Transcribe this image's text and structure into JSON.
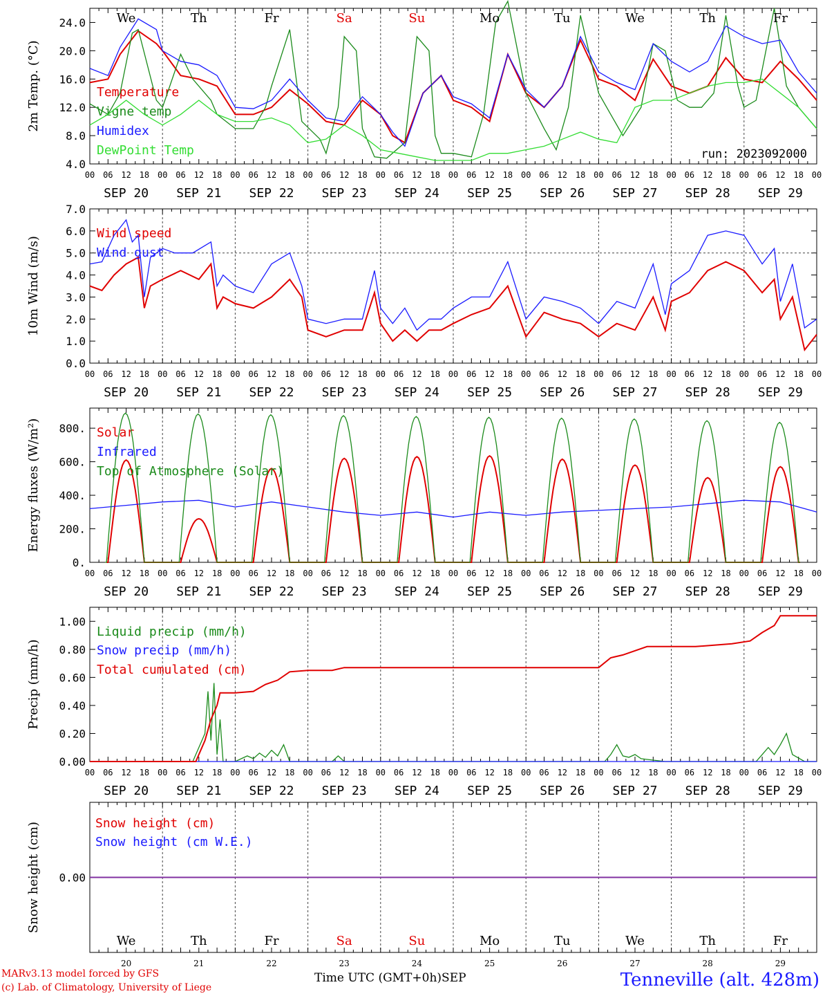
{
  "run_label": "run: 2023092000",
  "days": [
    "We",
    "Th",
    "Fr",
    "Sa",
    "Su",
    "Mo",
    "Tu",
    "We",
    "Th",
    "Fr"
  ],
  "weekend_days": [
    3,
    4
  ],
  "day_numbers": [
    "20",
    "21",
    "22",
    "23",
    "24",
    "25",
    "26",
    "27",
    "28",
    "29"
  ],
  "date_labels": [
    "SEP 20",
    "SEP 21",
    "SEP 22",
    "SEP 23",
    "SEP 24",
    "SEP 25",
    "SEP 26",
    "SEP 27",
    "SEP 28",
    "SEP 29"
  ],
  "hour_ticks": [
    "00",
    "06",
    "12",
    "18"
  ],
  "hour_end": "00",
  "colors": {
    "red": "#e00000",
    "green": "#1a8a1a",
    "blue": "#1a1aff",
    "lime": "#33dd33",
    "purple": "#8030a0"
  },
  "chart_data": [
    {
      "type": "line",
      "id": "temperature",
      "ylabel": "2m Temp. (°C)",
      "ylim": [
        4,
        26
      ],
      "yticks": [
        "4.0",
        "8.0",
        "12.0",
        "16.0",
        "20.0",
        "24.0"
      ],
      "ytick_values": [
        4,
        8,
        12,
        16,
        20,
        24
      ],
      "x_unit": "hours since SEP 20 00 UTC",
      "xlim": [
        0,
        240
      ],
      "series": [
        {
          "name": "Temperature",
          "color": "red",
          "x": [
            0,
            6,
            10,
            16,
            22,
            24,
            30,
            36,
            42,
            48,
            54,
            60,
            66,
            72,
            78,
            84,
            90,
            96,
            100,
            104,
            110,
            116,
            120,
            126,
            132,
            138,
            144,
            150,
            156,
            162,
            168,
            174,
            180,
            186,
            192,
            198,
            204,
            210,
            216,
            222,
            228,
            234,
            240
          ],
          "y": [
            15.5,
            16,
            19.5,
            22.8,
            21,
            20,
            16.5,
            16,
            15,
            11,
            11,
            12,
            14.5,
            12.5,
            10,
            9.5,
            13,
            11,
            8,
            7,
            14,
            16.5,
            13,
            12,
            10,
            19.5,
            14,
            12,
            15,
            21.5,
            16,
            15,
            13,
            18.8,
            15,
            14,
            15,
            19,
            16,
            15.5,
            18.5,
            16,
            13
          ]
        },
        {
          "name": "Vigne temp",
          "color": "green",
          "x": [
            0,
            6,
            10,
            14,
            16,
            22,
            24,
            30,
            34,
            40,
            42,
            48,
            54,
            58,
            60,
            66,
            70,
            76,
            78,
            82,
            84,
            88,
            90,
            94,
            98,
            104,
            108,
            112,
            114,
            116,
            120,
            126,
            130,
            134,
            138,
            144,
            150,
            154,
            158,
            162,
            168,
            172,
            176,
            182,
            186,
            190,
            194,
            198,
            202,
            206,
            210,
            214,
            216,
            220,
            226,
            230,
            234,
            240
          ],
          "y": [
            12.5,
            11,
            14,
            22.5,
            23,
            13,
            12,
            19.5,
            16,
            13,
            11,
            9,
            9,
            12,
            15,
            23,
            10,
            7.5,
            5.5,
            12,
            22,
            20,
            9,
            5,
            4.8,
            7,
            22,
            20,
            8,
            5.5,
            5.5,
            5,
            11,
            24,
            27,
            14,
            9,
            6,
            12,
            25,
            14,
            11,
            8,
            12,
            21,
            20,
            13,
            12,
            12,
            14,
            25,
            15,
            12,
            13,
            26,
            15,
            12,
            9
          ]
        },
        {
          "name": "Humidex",
          "color": "blue",
          "x": [
            0,
            6,
            10,
            16,
            22,
            24,
            30,
            36,
            42,
            48,
            54,
            60,
            66,
            72,
            78,
            84,
            90,
            96,
            100,
            104,
            110,
            116,
            120,
            126,
            132,
            138,
            144,
            150,
            156,
            162,
            168,
            174,
            180,
            186,
            192,
            198,
            204,
            210,
            216,
            222,
            228,
            234,
            240
          ],
          "y": [
            17.5,
            16.5,
            20.5,
            24.5,
            23,
            20,
            18.5,
            18,
            16.5,
            12,
            11.8,
            13,
            16,
            13,
            10.5,
            10,
            13.5,
            11,
            8.5,
            6.5,
            14,
            16.5,
            13.5,
            12.5,
            10.5,
            19.5,
            14.5,
            12,
            15,
            22,
            17,
            15.5,
            14.5,
            21,
            18.5,
            17,
            18.5,
            23.5,
            22,
            21,
            21.5,
            17,
            14
          ]
        },
        {
          "name": "DewPoint Temp",
          "color": "lime",
          "x": [
            0,
            6,
            12,
            18,
            24,
            30,
            36,
            42,
            48,
            54,
            60,
            66,
            72,
            78,
            84,
            90,
            96,
            102,
            108,
            114,
            120,
            126,
            132,
            138,
            144,
            150,
            156,
            162,
            168,
            174,
            180,
            186,
            192,
            198,
            204,
            210,
            216,
            222,
            228,
            234,
            240
          ],
          "y": [
            9.5,
            11,
            13,
            11,
            9.5,
            11,
            13,
            11,
            10,
            10,
            10.5,
            9.5,
            7,
            7.5,
            9.5,
            8,
            6,
            5.5,
            5,
            4.5,
            4.5,
            4.5,
            5.5,
            5.5,
            6,
            6.5,
            7.5,
            8.5,
            7.5,
            7,
            12,
            13,
            13,
            14,
            15,
            15.5,
            15.5,
            16,
            14,
            12,
            9
          ]
        }
      ]
    },
    {
      "type": "line",
      "id": "wind",
      "ylabel": "10m Wind (m/s)",
      "ylim": [
        0,
        7
      ],
      "yticks": [
        "0.0",
        "1.0",
        "2.0",
        "3.0",
        "4.0",
        "5.0",
        "6.0",
        "7.0"
      ],
      "ytick_values": [
        0,
        1,
        2,
        3,
        4,
        5,
        6,
        7
      ],
      "xlim": [
        0,
        240
      ],
      "hline": 5,
      "series": [
        {
          "name": "Wind speed",
          "color": "red",
          "x": [
            0,
            4,
            8,
            12,
            16,
            18,
            20,
            24,
            30,
            36,
            40,
            42,
            44,
            48,
            54,
            60,
            66,
            70,
            72,
            78,
            84,
            90,
            94,
            96,
            100,
            104,
            108,
            112,
            116,
            120,
            126,
            132,
            138,
            144,
            150,
            156,
            162,
            168,
            174,
            180,
            186,
            190,
            192,
            198,
            204,
            210,
            216,
            222,
            226,
            228,
            232,
            236,
            240
          ],
          "y": [
            3.5,
            3.3,
            4,
            4.5,
            4.8,
            2.5,
            3.5,
            3.8,
            4.2,
            3.8,
            4.5,
            2.5,
            3,
            2.7,
            2.5,
            3,
            3.8,
            3,
            1.5,
            1.2,
            1.5,
            1.5,
            3.2,
            1.8,
            1,
            1.5,
            1,
            1.5,
            1.5,
            1.8,
            2.2,
            2.5,
            3.5,
            1.2,
            2.3,
            2,
            1.8,
            1.2,
            1.8,
            1.5,
            3,
            1.5,
            2.8,
            3.2,
            4.2,
            4.6,
            4.2,
            3.2,
            3.8,
            2,
            3,
            0.6,
            1.3
          ]
        },
        {
          "name": "Wind gust",
          "color": "blue",
          "x": [
            0,
            4,
            8,
            12,
            14,
            16,
            18,
            20,
            24,
            28,
            34,
            40,
            42,
            44,
            48,
            54,
            60,
            66,
            70,
            72,
            78,
            84,
            90,
            94,
            96,
            100,
            104,
            108,
            112,
            116,
            120,
            126,
            132,
            138,
            144,
            150,
            156,
            162,
            168,
            174,
            180,
            186,
            190,
            192,
            198,
            204,
            210,
            216,
            222,
            226,
            228,
            232,
            236,
            240
          ],
          "y": [
            4.5,
            4.6,
            5.8,
            6.5,
            5.5,
            5.8,
            3,
            4.8,
            5.2,
            5,
            5,
            5.5,
            3.5,
            4,
            3.5,
            3.2,
            4.5,
            5,
            3.5,
            2,
            1.8,
            2,
            2,
            4.2,
            2.5,
            1.8,
            2.5,
            1.5,
            2,
            2,
            2.5,
            3,
            3,
            4.6,
            2,
            3,
            2.8,
            2.5,
            1.8,
            2.8,
            2.5,
            4.5,
            2.2,
            3.6,
            4.2,
            5.8,
            6,
            5.8,
            4.5,
            5.2,
            2.8,
            4.5,
            1.6,
            2
          ]
        }
      ]
    },
    {
      "type": "line",
      "id": "energy",
      "ylabel": "Energy fluxes (W/m²)",
      "ylim": [
        0,
        920
      ],
      "yticks": [
        "0.",
        "200.",
        "400.",
        "600.",
        "800."
      ],
      "ytick_values": [
        0,
        200,
        400,
        600,
        800
      ],
      "xlim": [
        0,
        240
      ],
      "series": [
        {
          "name": "Solar",
          "color": "red",
          "daily_peaks": [
            610,
            260,
            560,
            620,
            630,
            635,
            615,
            580,
            505,
            570
          ],
          "daily_window": [
            6,
            18
          ]
        },
        {
          "name": "Infrared",
          "color": "blue",
          "x": [
            0,
            12,
            24,
            36,
            48,
            60,
            72,
            84,
            96,
            108,
            120,
            132,
            144,
            156,
            168,
            180,
            192,
            204,
            216,
            228,
            240
          ],
          "y": [
            320,
            340,
            360,
            370,
            330,
            360,
            330,
            300,
            280,
            300,
            270,
            300,
            280,
            300,
            310,
            320,
            330,
            350,
            370,
            360,
            300
          ]
        },
        {
          "name": "Top of Atmosphere (Solar)",
          "color": "green",
          "daily_peaks": [
            890,
            885,
            880,
            875,
            870,
            865,
            860,
            855,
            845,
            835
          ],
          "daily_window": [
            5.5,
            18
          ]
        }
      ]
    },
    {
      "type": "line",
      "id": "precip",
      "ylabel": "Precip (mm/h)",
      "ylim": [
        0,
        1.1
      ],
      "yticks": [
        "0.00",
        "0.20",
        "0.40",
        "0.60",
        "0.80",
        "1.00"
      ],
      "ytick_values": [
        0,
        0.2,
        0.4,
        0.6,
        0.8,
        1.0
      ],
      "xlim": [
        0,
        240
      ],
      "series": [
        {
          "name": "Liquid precip (mm/h)",
          "color": "green",
          "x": [
            0,
            34,
            36,
            38,
            39,
            40,
            41,
            42,
            43,
            44,
            46,
            48,
            50,
            52,
            54,
            56,
            58,
            60,
            62,
            64,
            66,
            70,
            72,
            80,
            82,
            84,
            170,
            172,
            174,
            176,
            178,
            180,
            182,
            186,
            190,
            220,
            222,
            224,
            226,
            228,
            230,
            232,
            236,
            240
          ],
          "y": [
            0,
            0,
            0.1,
            0.2,
            0.5,
            0.15,
            0.56,
            0.05,
            0.3,
            0,
            0,
            0,
            0.02,
            0.04,
            0.02,
            0.06,
            0.03,
            0.08,
            0.04,
            0.12,
            0,
            0,
            0,
            0,
            0.04,
            0,
            0,
            0.05,
            0.12,
            0.04,
            0.03,
            0.05,
            0.02,
            0.01,
            0,
            0,
            0.05,
            0.1,
            0.05,
            0.12,
            0.2,
            0.05,
            0,
            0
          ]
        },
        {
          "name": "Snow precip (mm/h)",
          "color": "blue",
          "x": [
            0,
            240
          ],
          "y": [
            0,
            0
          ]
        },
        {
          "name": "Total cumulated (cm)",
          "color": "red",
          "x": [
            0,
            35,
            38,
            40,
            42,
            43,
            48,
            54,
            58,
            62,
            66,
            72,
            80,
            84,
            100,
            120,
            168,
            172,
            176,
            184,
            200,
            212,
            218,
            222,
            226,
            228,
            240
          ],
          "y": [
            0,
            0,
            0.15,
            0.3,
            0.4,
            0.49,
            0.49,
            0.5,
            0.55,
            0.58,
            0.64,
            0.65,
            0.65,
            0.67,
            0.67,
            0.67,
            0.67,
            0.74,
            0.76,
            0.82,
            0.82,
            0.84,
            0.86,
            0.92,
            0.97,
            1.04,
            1.04
          ]
        }
      ]
    },
    {
      "type": "line",
      "id": "snow",
      "ylabel": "Snow height (cm)",
      "ylim": [
        -1,
        1
      ],
      "yticks": [
        "0.00"
      ],
      "ytick_values": [
        0
      ],
      "xlim": [
        0,
        240
      ],
      "series": [
        {
          "name": "Snow height (cm)",
          "color": "red",
          "x": [
            0,
            240
          ],
          "y": [
            0,
            0
          ]
        },
        {
          "name": "Snow height (cm W.E.)",
          "color": "blue",
          "x": [
            0,
            240
          ],
          "y": [
            0,
            0
          ]
        }
      ]
    }
  ],
  "footer": {
    "model": "MARv3.13 model forced by GFS",
    "lab": "(c) Lab. of Climatology, University of Liege",
    "time_label": "Time UTC (GMT+0h)",
    "month": "SEP",
    "location": "Tenneville (alt. 428m)"
  }
}
